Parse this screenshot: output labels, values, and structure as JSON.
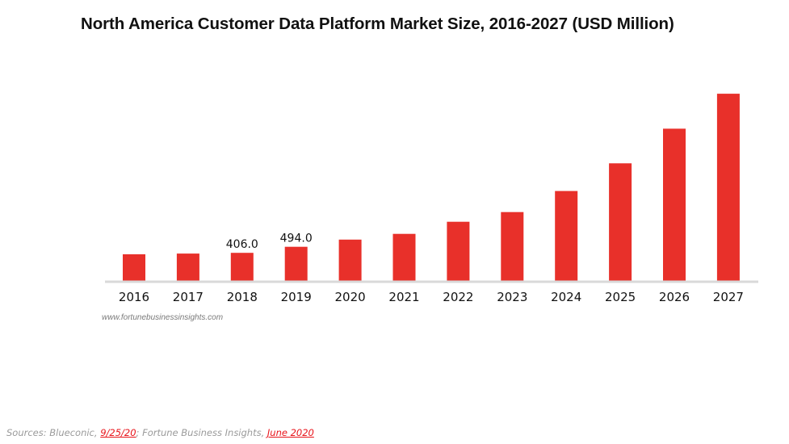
{
  "chart_data": {
    "type": "bar",
    "title": "North America Customer Data Platform Market Size, 2016-2027 (USD Million)",
    "xlabel": "",
    "ylabel": "",
    "categories": [
      "2016",
      "2017",
      "2018",
      "2019",
      "2020",
      "2021",
      "2022",
      "2023",
      "2024",
      "2025",
      "2026",
      "2027"
    ],
    "values": [
      385,
      395,
      406.0,
      494.0,
      597,
      680,
      855,
      995,
      1300,
      1700,
      2200,
      2705
    ],
    "data_labels": [
      "",
      "",
      "406.0",
      "494.0",
      "",
      "",
      "",
      "",
      "",
      "",
      "",
      ""
    ],
    "ylim": [
      0,
      2800
    ],
    "grid": false,
    "legend": "none",
    "bar_color": "#e8302a",
    "axis_color": "#d9d9d9"
  },
  "watermark": "www.fortunebusinessinsights.com",
  "sources": {
    "prefix": "Sources: Blueconic, ",
    "link1": "9/25/20",
    "middle": "; Fortune Business Insights, ",
    "link2": "June 2020"
  }
}
